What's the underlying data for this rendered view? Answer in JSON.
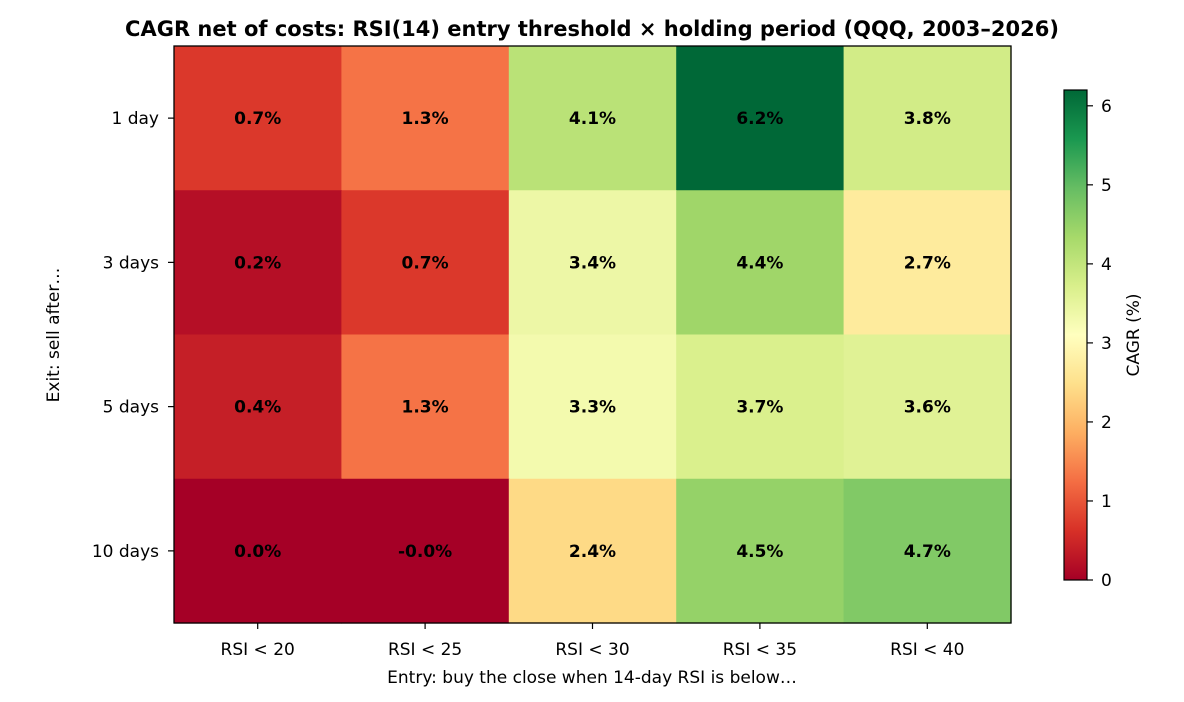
{
  "chart_data": {
    "type": "heatmap",
    "title": "CAGR net of costs: RSI(14) entry threshold × holding period (QQQ, 2003–2026)",
    "xlabel": "Entry: buy the close when 14-day RSI is below…",
    "ylabel": "Exit: sell after…",
    "x_categories": [
      "RSI < 20",
      "RSI < 25",
      "RSI < 30",
      "RSI < 35",
      "RSI < 40"
    ],
    "y_categories": [
      "1 day",
      "3 days",
      "5 days",
      "10 days"
    ],
    "values": [
      [
        0.7,
        1.3,
        4.1,
        6.2,
        3.8
      ],
      [
        0.2,
        0.7,
        3.4,
        4.4,
        2.7
      ],
      [
        0.4,
        1.3,
        3.3,
        3.7,
        3.6
      ],
      [
        0.0,
        -0.0,
        2.4,
        4.5,
        4.7
      ]
    ],
    "cell_labels": [
      [
        "0.7%",
        "1.3%",
        "4.1%",
        "6.2%",
        "3.8%"
      ],
      [
        "0.2%",
        "0.7%",
        "3.4%",
        "4.4%",
        "2.7%"
      ],
      [
        "0.4%",
        "1.3%",
        "3.3%",
        "3.7%",
        "3.6%"
      ],
      [
        "0.0%",
        "-0.0%",
        "2.4%",
        "4.5%",
        "4.7%"
      ]
    ],
    "colorbar": {
      "label": "CAGR (%)",
      "range": [
        0,
        6.2
      ],
      "ticks": [
        0,
        1,
        2,
        3,
        4,
        5,
        6
      ],
      "colormap": "RdYlGn"
    },
    "grid": false
  }
}
